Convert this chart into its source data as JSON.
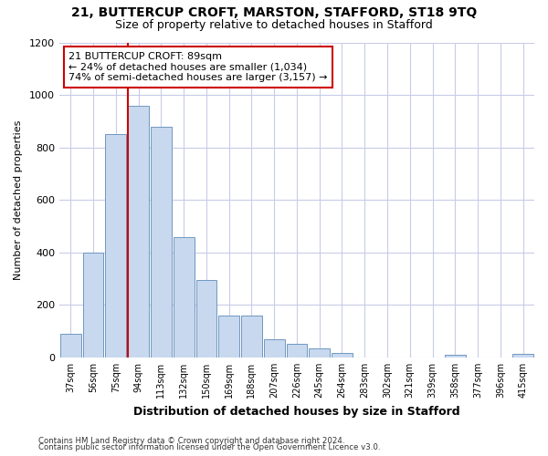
{
  "title1": "21, BUTTERCUP CROFT, MARSTON, STAFFORD, ST18 9TQ",
  "title2": "Size of property relative to detached houses in Stafford",
  "xlabel": "Distribution of detached houses by size in Stafford",
  "ylabel": "Number of detached properties",
  "bar_labels": [
    "37sqm",
    "56sqm",
    "75sqm",
    "94sqm",
    "113sqm",
    "132sqm",
    "150sqm",
    "169sqm",
    "188sqm",
    "207sqm",
    "226sqm",
    "245sqm",
    "264sqm",
    "283sqm",
    "302sqm",
    "321sqm",
    "339sqm",
    "358sqm",
    "377sqm",
    "396sqm",
    "415sqm"
  ],
  "bar_values": [
    90,
    400,
    850,
    960,
    880,
    460,
    295,
    160,
    160,
    70,
    52,
    35,
    18,
    0,
    0,
    0,
    0,
    10,
    0,
    0,
    12
  ],
  "bar_color": "#c8d8ee",
  "bar_edge_color": "#7098c0",
  "grid_color": "#c8cce8",
  "red_line_color": "#cc0000",
  "annotation_line1": "21 BUTTERCUP CROFT: 89sqm",
  "annotation_line2": "← 24% of detached houses are smaller (1,034)",
  "annotation_line3": "74% of semi-detached houses are larger (3,157) →",
  "footnote1": "Contains HM Land Registry data © Crown copyright and database right 2024.",
  "footnote2": "Contains public sector information licensed under the Open Government Licence v3.0.",
  "ylim": [
    0,
    1200
  ],
  "yticks": [
    0,
    200,
    400,
    600,
    800,
    1000,
    1200
  ],
  "bg_color": "#ffffff",
  "red_line_bar_index": 3
}
